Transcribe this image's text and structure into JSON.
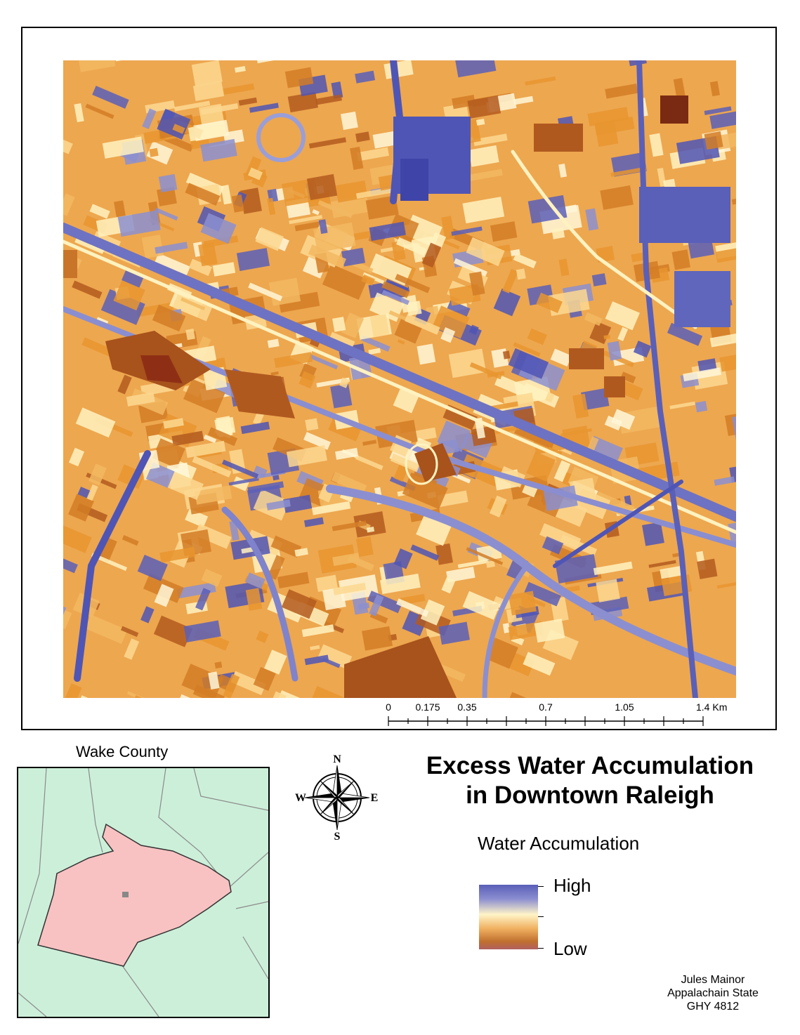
{
  "title": {
    "line1": "Excess Water Accumulation",
    "line2": "in Downtown Raleigh"
  },
  "scale_bar": {
    "labels": [
      "0",
      "0.175",
      "0.35",
      "0.7",
      "1.05",
      "1.4 Km"
    ]
  },
  "inset": {
    "title": "Wake County"
  },
  "compass": {
    "n": "N",
    "s": "S",
    "e": "E",
    "w": "W"
  },
  "legend": {
    "title": "Water Accumulation",
    "high": "High",
    "low": "Low",
    "colors": [
      "#5a5fb8",
      "#8b8ed0",
      "#fff4c8",
      "#f0b060",
      "#c06f2e",
      "#b06060"
    ]
  },
  "credits": {
    "line1": "Jules Mainor",
    "line2": "Appalachain State",
    "line3": "GHY 4812"
  },
  "colors": {
    "high": "#4f55b5",
    "mid": "#fff2c0",
    "low": "#e39a3c",
    "very_low": "#b35a1f"
  }
}
